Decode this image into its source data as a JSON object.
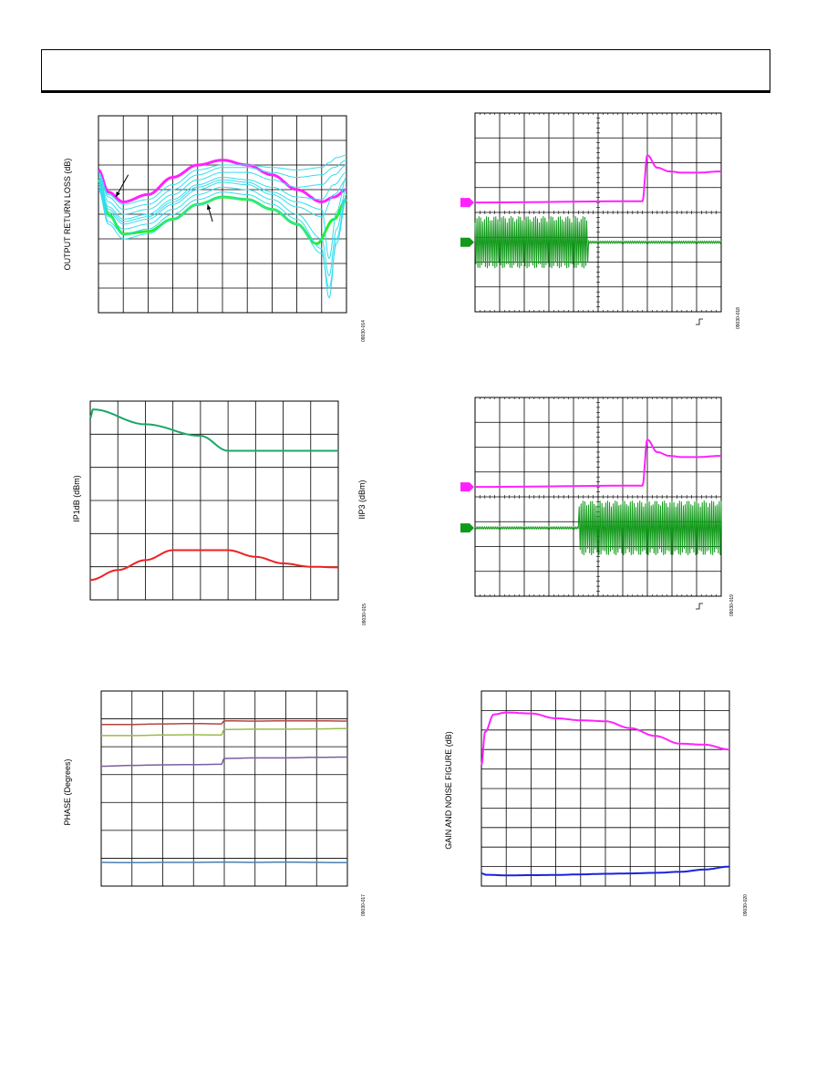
{
  "colors": {
    "magenta": "#ff22ff",
    "green_bright": "#22ee33",
    "cyan": "#33ddee",
    "green_scope": "#11991a",
    "teal_green": "#1aa765",
    "red": "#ee2222",
    "brown_red": "#b3443f",
    "olive": "#9bbb4f",
    "purple": "#7a5f9f",
    "steel_blue": "#4a80b0",
    "blue": "#1a22dd"
  },
  "chart_data": [
    {
      "id": "output-return-loss",
      "type": "line",
      "ylabel": "OUTPUT RETURN LOSS (dB)",
      "figure_id": "09030-014",
      "grid": true,
      "x_divisions": 10,
      "y_divisions": 8,
      "xlim": [
        0,
        10
      ],
      "ylim": [
        0,
        8
      ],
      "arrows": [
        {
          "from": [
            1.2,
            5.6
          ],
          "to": [
            0.7,
            4.7
          ]
        },
        {
          "from": [
            4.6,
            3.7
          ],
          "to": [
            4.4,
            4.4
          ]
        }
      ],
      "series": [
        {
          "color_key": "magenta",
          "width": 3,
          "x": [
            0,
            0.4,
            1,
            2,
            3,
            4,
            5,
            6,
            7,
            8,
            9,
            9.5,
            10
          ],
          "y": [
            5.8,
            4.9,
            4.5,
            4.8,
            5.5,
            6.0,
            6.2,
            6.0,
            5.6,
            5.0,
            4.5,
            4.7,
            5.0
          ]
        },
        {
          "color_key": "green_bright",
          "width": 3,
          "x": [
            0,
            0.4,
            1,
            2,
            3,
            4,
            5,
            6,
            7,
            8,
            8.8,
            9.5,
            10
          ],
          "y": [
            5.4,
            4.0,
            3.2,
            3.3,
            3.8,
            4.4,
            4.7,
            4.6,
            4.2,
            3.6,
            2.8,
            3.8,
            4.6
          ]
        },
        {
          "color_key": "cyan",
          "width": 1,
          "x": [
            0,
            0.4,
            1,
            2,
            3,
            4,
            5,
            6,
            7,
            8,
            9,
            9.5,
            10
          ],
          "y": [
            5.6,
            4.7,
            4.2,
            4.4,
            5.0,
            5.6,
            5.9,
            5.9,
            5.7,
            5.5,
            5.6,
            5.9,
            6.2
          ]
        },
        {
          "color_key": "cyan",
          "width": 1,
          "x": [
            0,
            0.4,
            1,
            2,
            3,
            4,
            5,
            6,
            7,
            8,
            9,
            9.5,
            10
          ],
          "y": [
            5.5,
            4.5,
            4.0,
            4.2,
            4.8,
            5.4,
            5.7,
            5.7,
            5.4,
            5.1,
            5.2,
            5.6,
            6.0
          ]
        },
        {
          "color_key": "cyan",
          "width": 1,
          "x": [
            0,
            0.4,
            1,
            2,
            3,
            4,
            5,
            6,
            7,
            8,
            9,
            9.5,
            10
          ],
          "y": [
            5.4,
            4.3,
            3.8,
            4.0,
            4.6,
            5.2,
            5.5,
            5.4,
            5.1,
            4.7,
            4.6,
            5.2,
            5.7
          ]
        },
        {
          "color_key": "cyan",
          "width": 1,
          "x": [
            0,
            0.4,
            1,
            2,
            3,
            4,
            5,
            6,
            7,
            8,
            9,
            9.5,
            10
          ],
          "y": [
            5.3,
            4.1,
            3.6,
            3.8,
            4.4,
            5.0,
            5.3,
            5.2,
            4.8,
            4.3,
            3.9,
            4.8,
            5.4
          ]
        },
        {
          "color_key": "cyan",
          "width": 1,
          "x": [
            0,
            0.4,
            1,
            2,
            3,
            4,
            5,
            6,
            7,
            8,
            9,
            9.3,
            9.6,
            10
          ],
          "y": [
            5.2,
            3.9,
            3.4,
            3.6,
            4.2,
            4.8,
            5.1,
            5.0,
            4.6,
            4.0,
            3.0,
            1.5,
            3.4,
            5.1
          ]
        },
        {
          "color_key": "cyan",
          "width": 1,
          "x": [
            0,
            0.4,
            1,
            2,
            3,
            4,
            5,
            6,
            7,
            8,
            9,
            9.3,
            9.6,
            10
          ],
          "y": [
            5.1,
            3.7,
            3.2,
            3.4,
            4.0,
            4.6,
            4.9,
            4.8,
            4.4,
            3.8,
            2.6,
            0.6,
            3.0,
            4.8
          ]
        },
        {
          "color_key": "cyan",
          "width": 1,
          "x": [
            0,
            0.4,
            1,
            2,
            3,
            4,
            5,
            6,
            7,
            8,
            9,
            9.3,
            9.6,
            10
          ],
          "y": [
            5.0,
            3.6,
            3.0,
            3.2,
            3.8,
            4.4,
            4.7,
            4.6,
            4.2,
            3.6,
            2.4,
            1.0,
            2.8,
            4.6
          ]
        },
        {
          "color_key": "cyan",
          "width": 1,
          "x": [
            0,
            0.4,
            1,
            2,
            3,
            4,
            5,
            6,
            7,
            8,
            9,
            9.3,
            9.6,
            10
          ],
          "y": [
            5.7,
            4.8,
            4.4,
            4.6,
            5.2,
            5.8,
            6.0,
            6.0,
            5.9,
            5.8,
            5.9,
            6.1,
            6.3,
            6.4
          ]
        },
        {
          "color_key": "cyan",
          "width": 1,
          "x": [
            0,
            0.4,
            1,
            2,
            3,
            4,
            5,
            6,
            7,
            8,
            9,
            9.3,
            9.6,
            10
          ],
          "y": [
            5.35,
            4.2,
            3.7,
            3.9,
            4.5,
            5.1,
            5.4,
            5.3,
            4.9,
            4.5,
            4.2,
            2.2,
            4.1,
            5.5
          ]
        }
      ]
    },
    {
      "id": "scope-pulse-off",
      "type": "line",
      "figure_id": "09030-018",
      "grid": true,
      "x_divisions": 10,
      "y_divisions": 8,
      "xlim": [
        0,
        10
      ],
      "ylim": [
        0,
        8
      ],
      "series": [
        {
          "color_key": "magenta",
          "width": 2,
          "x": [
            0,
            6.8,
            7.0,
            7.4,
            7.9,
            8.4,
            9.0,
            10
          ],
          "y": [
            4.4,
            4.45,
            6.3,
            5.8,
            5.65,
            5.6,
            5.6,
            5.65
          ]
        },
        {
          "color_key": "green_scope",
          "width": 2,
          "kind": "burst",
          "start": 0,
          "end": 10,
          "center": 2.8,
          "burst_on": 0,
          "burst_off": 4.6,
          "amplitude": 1.05
        }
      ]
    },
    {
      "id": "p1db-ip3",
      "type": "line",
      "ylabel": "IP1dB (dBm)",
      "ylabel2": "IIP3 (dBm)",
      "figure_id": "09030-015",
      "grid": true,
      "x_divisions": 9,
      "y_divisions": 6,
      "xlim": [
        0,
        9
      ],
      "ylim": [
        0,
        6
      ],
      "series": [
        {
          "color_key": "teal_green",
          "width": 2,
          "x": [
            0,
            0.1,
            2,
            4,
            5,
            6,
            7,
            8,
            9
          ],
          "y": [
            5.5,
            5.75,
            5.3,
            4.95,
            4.5,
            4.5,
            4.5,
            4.5,
            4.5
          ]
        },
        {
          "color_key": "red",
          "width": 2,
          "x": [
            0,
            1,
            2,
            3,
            4,
            5,
            6,
            7,
            8,
            9
          ],
          "y": [
            0.6,
            0.9,
            1.2,
            1.5,
            1.5,
            1.5,
            1.3,
            1.1,
            1.0,
            0.98
          ]
        }
      ]
    },
    {
      "id": "scope-pulse-on",
      "type": "line",
      "figure_id": "09030-019",
      "grid": true,
      "x_divisions": 10,
      "y_divisions": 8,
      "xlim": [
        0,
        10
      ],
      "ylim": [
        0,
        8
      ],
      "series": [
        {
          "color_key": "magenta",
          "width": 2,
          "x": [
            0,
            6.8,
            7.0,
            7.4,
            7.9,
            8.4,
            9.0,
            10
          ],
          "y": [
            4.4,
            4.45,
            6.3,
            5.8,
            5.65,
            5.6,
            5.6,
            5.65
          ]
        },
        {
          "color_key": "green_scope",
          "width": 2,
          "kind": "burst",
          "start": 0,
          "end": 10,
          "center": 2.75,
          "burst_on": 4.2,
          "burst_off": 10,
          "amplitude": 1.1
        }
      ]
    },
    {
      "id": "phase",
      "type": "line",
      "ylabel": "PHASE (Degrees)",
      "figure_id": "09030-017",
      "grid": true,
      "x_divisions": 8,
      "y_divisions": 7,
      "xlim": [
        0,
        8
      ],
      "ylim": [
        0,
        7
      ],
      "series": [
        {
          "color_key": "brown_red",
          "width": 1.5,
          "x": [
            0,
            1,
            2,
            3,
            3.9,
            4.0,
            5,
            6,
            7,
            8
          ],
          "y": [
            5.8,
            5.8,
            5.82,
            5.83,
            5.82,
            5.93,
            5.92,
            5.93,
            5.93,
            5.92
          ]
        },
        {
          "color_key": "olive",
          "width": 1.5,
          "x": [
            0,
            1,
            2,
            3,
            3.9,
            4.0,
            5,
            6,
            7,
            8
          ],
          "y": [
            5.4,
            5.4,
            5.42,
            5.43,
            5.42,
            5.62,
            5.63,
            5.63,
            5.64,
            5.65
          ]
        },
        {
          "color_key": "purple",
          "width": 1.5,
          "x": [
            0,
            1,
            2,
            3,
            3.9,
            4.0,
            5,
            6,
            7,
            8
          ],
          "y": [
            4.3,
            4.33,
            4.35,
            4.36,
            4.37,
            4.58,
            4.6,
            4.6,
            4.62,
            4.63
          ]
        },
        {
          "color_key": "steel_blue",
          "width": 1.5,
          "x": [
            0,
            1,
            2,
            3,
            4,
            5,
            6,
            7,
            8
          ],
          "y": [
            0.85,
            0.84,
            0.85,
            0.85,
            0.86,
            0.85,
            0.86,
            0.85,
            0.84
          ]
        }
      ]
    },
    {
      "id": "gain-nf",
      "type": "line",
      "ylabel": "GAIN AND NOISE FIGURE (dB)",
      "figure_id": "09030-020",
      "grid": true,
      "x_divisions": 10,
      "y_divisions": 10,
      "xlim": [
        0,
        10
      ],
      "ylim": [
        0,
        10
      ],
      "series": [
        {
          "color_key": "magenta",
          "width": 2,
          "x": [
            0,
            0.15,
            0.5,
            1,
            2,
            3,
            4,
            5,
            6,
            7,
            8,
            9,
            10
          ],
          "y": [
            6.2,
            7.9,
            8.8,
            8.9,
            8.85,
            8.6,
            8.5,
            8.45,
            8.1,
            7.7,
            7.3,
            7.25,
            7.0
          ]
        },
        {
          "color_key": "blue",
          "width": 2,
          "x": [
            0,
            0.2,
            1,
            2,
            3,
            4,
            5,
            6,
            7,
            8,
            9,
            10
          ],
          "y": [
            0.65,
            0.58,
            0.55,
            0.56,
            0.57,
            0.6,
            0.63,
            0.65,
            0.68,
            0.73,
            0.85,
            1.0
          ]
        }
      ]
    }
  ]
}
